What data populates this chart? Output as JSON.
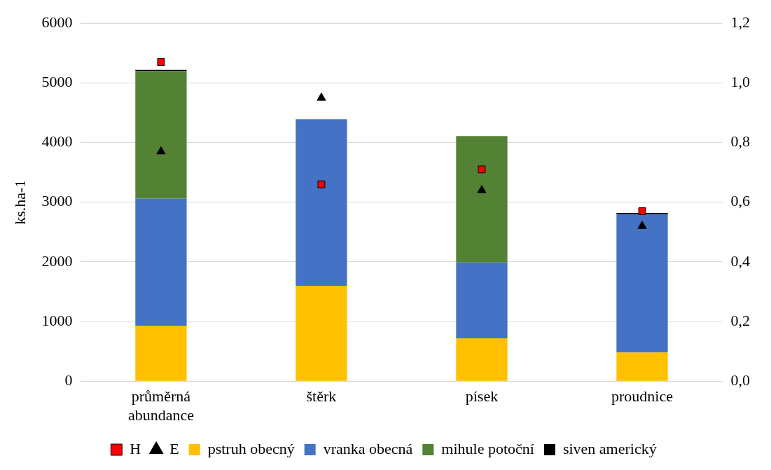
{
  "chart_data": {
    "type": "bar",
    "stacked": true,
    "ylabel": "ks.ha-1",
    "categories": [
      "průměrná abundance",
      "štěrk",
      "písek",
      "proudnice"
    ],
    "series": [
      {
        "name": "pstruh obecný",
        "color": "#ffc000",
        "values": [
          930,
          1600,
          720,
          480
        ]
      },
      {
        "name": "vranka obecná",
        "color": "#4472c4",
        "values": [
          2130,
          2790,
          1270,
          2320
        ]
      },
      {
        "name": "mihule potoční",
        "color": "#548235",
        "values": [
          2140,
          null,
          2120,
          null
        ]
      },
      {
        "name": "siven americký",
        "color": "#000000",
        "values": [
          20,
          null,
          null,
          20
        ]
      },
      {
        "name": "H",
        "type": "scatter",
        "marker": "square",
        "axis": "y2",
        "color": "#ff0000",
        "x": [
          "průměrná abundance",
          "štěrk",
          "písek",
          "proudnice"
        ],
        "values": [
          1.07,
          0.66,
          0.71,
          0.57
        ]
      },
      {
        "name": "E",
        "type": "scatter",
        "marker": "triangle",
        "axis": "y2",
        "color": "#000000",
        "x": [
          "průměrná abundance",
          "štěrk",
          "písek",
          "proudnice"
        ],
        "values": [
          0.77,
          0.95,
          0.64,
          0.52
        ]
      }
    ],
    "ylim": [
      0,
      6000
    ],
    "yticks": [
      0,
      1000,
      2000,
      3000,
      4000,
      5000,
      6000
    ],
    "y2lim": [
      0,
      1.2
    ],
    "y2ticks": [
      {
        "value": 0,
        "label": "0,0"
      },
      {
        "value": 0.2,
        "label": "0,2"
      },
      {
        "value": 0.4,
        "label": "0,4"
      },
      {
        "value": 0.6,
        "label": "0,6"
      },
      {
        "value": 0.8,
        "label": "0,8"
      },
      {
        "value": 1,
        "label": "1,0"
      },
      {
        "value": 1.2,
        "label": "1,2"
      }
    ],
    "grid": "y",
    "legend": "bottom"
  }
}
